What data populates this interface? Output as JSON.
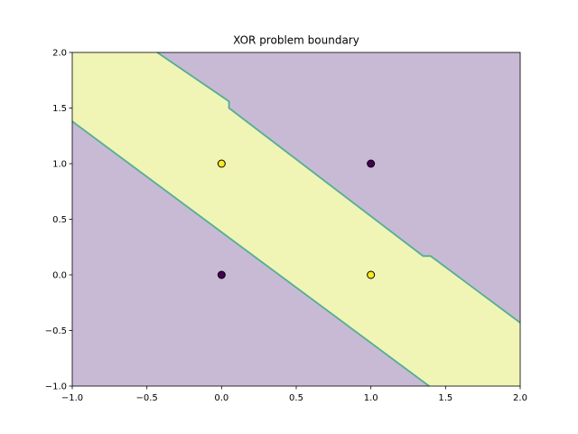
{
  "chart_data": {
    "type": "scatter",
    "title": "XOR problem boundary",
    "xlabel": "",
    "ylabel": "",
    "xlim": [
      -1.0,
      2.0
    ],
    "ylim": [
      -1.0,
      2.0
    ],
    "x_ticks": [
      -1.0,
      -0.5,
      0.0,
      0.5,
      1.0,
      1.5,
      2.0
    ],
    "x_tick_labels": [
      "−1.0",
      "−0.5",
      "0.0",
      "0.5",
      "1.0",
      "1.5",
      "2.0"
    ],
    "y_ticks": [
      -1.0,
      -0.5,
      0.0,
      0.5,
      1.0,
      1.5,
      2.0
    ],
    "y_tick_labels": [
      "−1.0",
      "−0.5",
      "0.0",
      "0.5",
      "1.0",
      "1.5",
      "2.0"
    ],
    "grid": false,
    "legend": "none",
    "points": [
      {
        "x": 0,
        "y": 0,
        "class": 0
      },
      {
        "x": 0,
        "y": 1,
        "class": 1
      },
      {
        "x": 1,
        "y": 0,
        "class": 1
      },
      {
        "x": 1,
        "y": 1,
        "class": 0
      }
    ],
    "decision_region": {
      "description_class": 1,
      "lower_boundary": [
        [
          -1.0,
          1.38
        ],
        [
          1.39,
          -1.0
        ]
      ],
      "upper_boundary": [
        [
          -0.43,
          2.0
        ],
        [
          0.05,
          1.56
        ],
        [
          0.05,
          1.5
        ],
        [
          1.35,
          0.17
        ],
        [
          1.4,
          0.17
        ],
        [
          2.0,
          -0.43
        ]
      ]
    },
    "colors": {
      "class_0": "#440154",
      "class_1": "#fde725",
      "region_0": "#c8bad5",
      "region_1": "#f0f5b6",
      "boundary": "#5a9ea8",
      "boundary_alt": "#7ccf8e"
    }
  }
}
